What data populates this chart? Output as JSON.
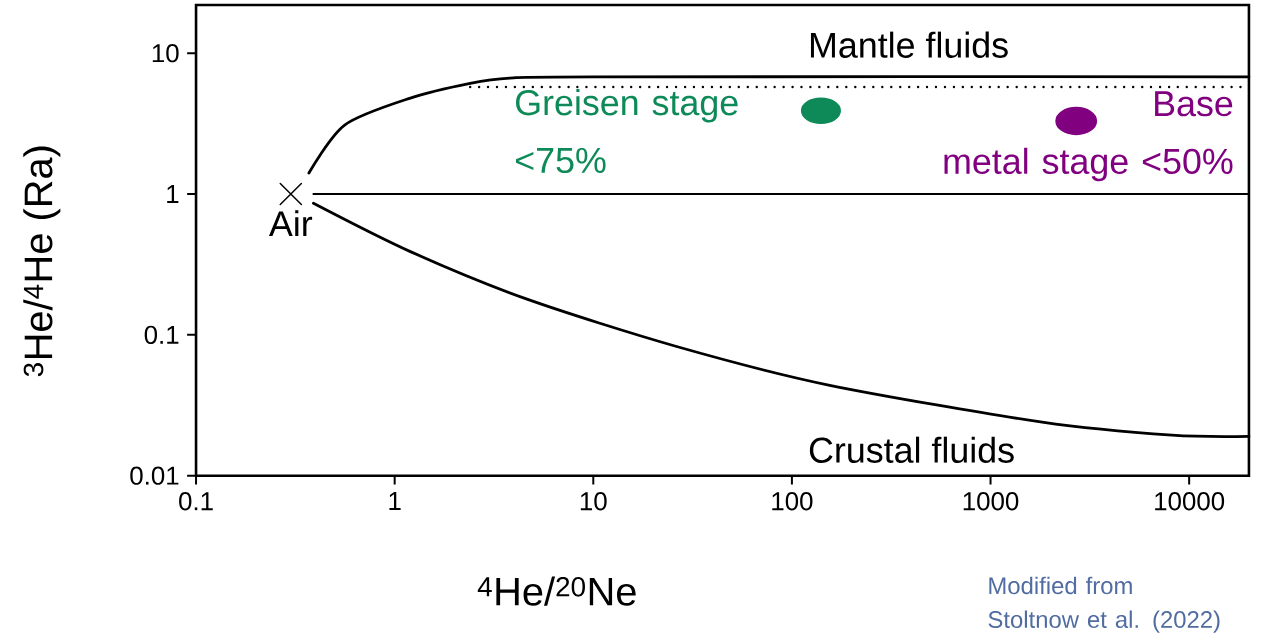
{
  "chart_data": {
    "type": "line",
    "xlabel": "$^{4}$He/$^{20}$Ne",
    "ylabel": "$^{3}$He/$^{4}$He (Ra)",
    "log": "xy",
    "xlim": [
      0.1,
      20000
    ],
    "ylim": [
      0.01,
      22
    ],
    "xticks": [
      0.1,
      1,
      10,
      100,
      1000,
      10000
    ],
    "yticks": [
      0.01,
      0.1,
      1,
      10
    ],
    "grid": false,
    "marker": "none",
    "line_style": "solid",
    "series": [
      {
        "color": "#000000",
        "x": [
          0.37,
          0.56,
          1.2,
          2.4,
          3.8,
          10,
          20000
        ],
        "values": [
          1.41,
          3.09,
          4.8,
          6.1,
          6.65,
          6.8,
          6.8
        ]
      },
      {
        "color": "#000000",
        "x": [
          0.39,
          1.2,
          4.6,
          26,
          153,
          1820,
          8200,
          20000
        ],
        "values": [
          0.86,
          0.39,
          0.18,
          0.083,
          0.044,
          0.024,
          0.0194,
          0.019
        ]
      },
      {
        "color": "#000000",
        "x": [
          0.39,
          20000
        ],
        "values": [
          1,
          1
        ]
      },
      {
        "color": "#000000",
        "x": [
          2.4,
          20000
        ],
        "values": [
          5.75,
          5.75
        ],
        "line_style": "dotted"
      },
      {
        "type": "scatter",
        "name": "Air",
        "color": "#000000",
        "x": [
          0.3
        ],
        "values": [
          1
        ],
        "marker": "cross"
      },
      {
        "type": "scatter",
        "name": "Greisen stage <75%",
        "color": "#0e8a58",
        "x": [
          140
        ],
        "values": [
          3.9
        ],
        "marker": "circle"
      },
      {
        "type": "scatter",
        "name": "Base metal stage <50%",
        "color": "#800080",
        "x": [
          2700
        ],
        "values": [
          3.3
        ],
        "marker": "circle"
      }
    ],
    "annotations": [
      "Mantle fluids",
      "Crustal fluids",
      "Modified from Stoltnow et al. (2022)"
    ]
  }
}
